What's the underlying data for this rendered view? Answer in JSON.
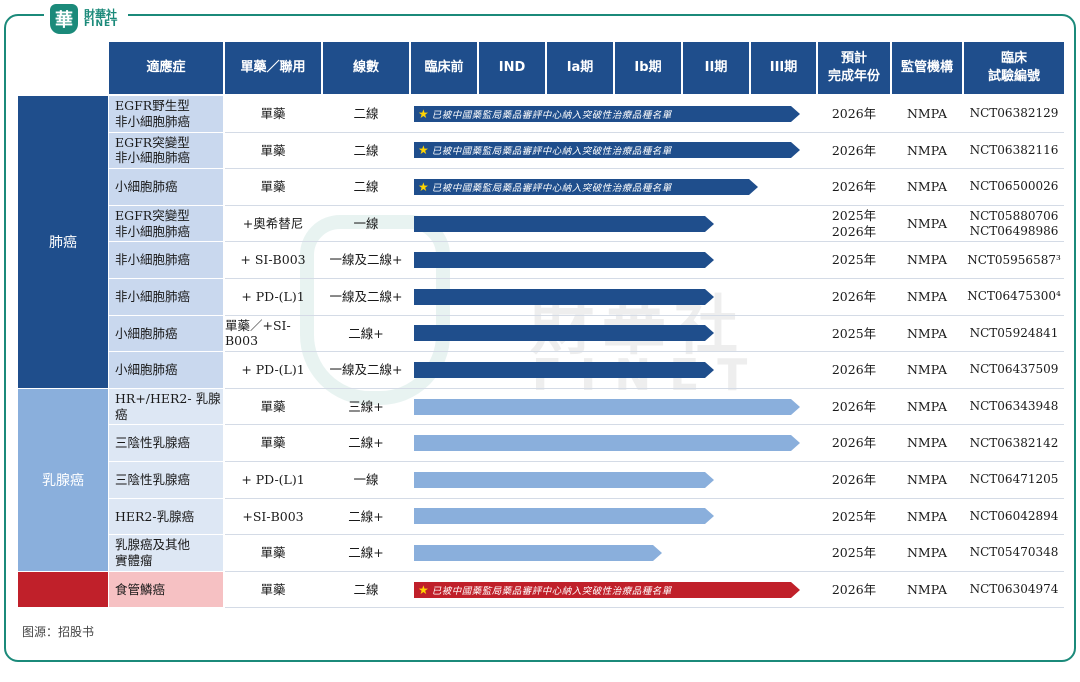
{
  "logo": {
    "badge": "華",
    "cn": "財華社",
    "en": "FINET"
  },
  "watermark": {
    "cn": "財華社",
    "en": "FINET"
  },
  "source": "图源：招股书",
  "headers": {
    "indication": "適應症",
    "mode": "單藥／聯用",
    "line": "線數",
    "preclinical": "臨床前",
    "ind": "IND",
    "ia": "Ia期",
    "ib": "Ib期",
    "ii": "II期",
    "iii": "III期",
    "year": "預計\n完成年份",
    "regulator": "監管機構",
    "trial": "臨床\n試驗編號"
  },
  "categories": [
    {
      "label": "肺癌",
      "color": "#1f4e8c"
    },
    {
      "label": "乳腺癌",
      "color": "#8aafdc"
    },
    {
      "label": "",
      "color": "#c0202a"
    }
  ],
  "breakthrough_note": "已被中國藥監局藥品審評中心納入突破性治療品種名單",
  "colors": {
    "dark_blue": "#1f4e8c",
    "light_blue": "#8aafdc",
    "red": "#c0202a",
    "teal": "#1b8a7a"
  },
  "rows": [
    {
      "indication": "EGFR野生型\n非小細胞肺癌",
      "mode": "單藥",
      "line": "二線",
      "years": [
        "2026年"
      ],
      "regulator": "NMPA",
      "trials": [
        "NCT06382129"
      ],
      "phase_end": "iii",
      "breakthrough": true,
      "group": 0
    },
    {
      "indication": "EGFR突變型\n非小細胞肺癌",
      "mode": "單藥",
      "line": "二線",
      "years": [
        "2026年"
      ],
      "regulator": "NMPA",
      "trials": [
        "NCT06382116"
      ],
      "phase_end": "iii",
      "breakthrough": true,
      "group": 0
    },
    {
      "indication": "小細胞肺癌",
      "mode": "單藥",
      "line": "二線",
      "years": [
        "2026年"
      ],
      "regulator": "NMPA",
      "trials": [
        "NCT06500026"
      ],
      "phase_end": "iii_start",
      "breakthrough": true,
      "group": 0
    },
    {
      "indication": "EGFR突變型\n非小細胞肺癌",
      "mode": "+奧希替尼",
      "line": "一線",
      "years": [
        "2025年",
        "2026年"
      ],
      "regulator": "NMPA",
      "trials": [
        "NCT05880706",
        "NCT06498986"
      ],
      "phase_end": "ii",
      "breakthrough": false,
      "group": 0
    },
    {
      "indication": "非小細胞肺癌",
      "mode": "+ SI-B003",
      "line": "一線及二線+",
      "years": [
        "2025年"
      ],
      "regulator": "NMPA",
      "trials": [
        "NCT05956587³"
      ],
      "phase_end": "ii",
      "breakthrough": false,
      "group": 0
    },
    {
      "indication": "非小細胞肺癌",
      "mode": "+ PD-(L)1",
      "line": "一線及二線+",
      "years": [
        "2026年"
      ],
      "regulator": "NMPA",
      "trials": [
        "NCT06475300⁴"
      ],
      "phase_end": "ii",
      "breakthrough": false,
      "group": 0
    },
    {
      "indication": "小細胞肺癌",
      "mode": "單藥／+SI-B003",
      "line": "二線+",
      "years": [
        "2025年"
      ],
      "regulator": "NMPA",
      "trials": [
        "NCT05924841"
      ],
      "phase_end": "ii",
      "breakthrough": false,
      "group": 0
    },
    {
      "indication": "小細胞肺癌",
      "mode": "+ PD-(L)1",
      "line": "一線及二線+",
      "years": [
        "2026年"
      ],
      "regulator": "NMPA",
      "trials": [
        "NCT06437509"
      ],
      "phase_end": "ii",
      "breakthrough": false,
      "group": 0
    },
    {
      "indication": "HR+/HER2- 乳腺癌",
      "mode": "單藥",
      "line": "三線+",
      "years": [
        "2026年"
      ],
      "regulator": "NMPA",
      "trials": [
        "NCT06343948"
      ],
      "phase_end": "iii",
      "breakthrough": false,
      "group": 1
    },
    {
      "indication": "三陰性乳腺癌",
      "mode": "單藥",
      "line": "二線+",
      "years": [
        "2026年"
      ],
      "regulator": "NMPA",
      "trials": [
        "NCT06382142"
      ],
      "phase_end": "iii",
      "breakthrough": false,
      "group": 1
    },
    {
      "indication": "三陰性乳腺癌",
      "mode": "+ PD-(L)1",
      "line": "一線",
      "years": [
        "2026年"
      ],
      "regulator": "NMPA",
      "trials": [
        "NCT06471205"
      ],
      "phase_end": "ii",
      "breakthrough": false,
      "group": 1
    },
    {
      "indication": "HER2-乳腺癌",
      "mode": "+SI-B003",
      "line": "二線+",
      "years": [
        "2025年"
      ],
      "regulator": "NMPA",
      "trials": [
        "NCT06042894"
      ],
      "phase_end": "ii",
      "breakthrough": false,
      "group": 1
    },
    {
      "indication": "乳腺癌及其他\n實體瘤",
      "mode": "單藥",
      "line": "二線+",
      "years": [
        "2025年"
      ],
      "regulator": "NMPA",
      "trials": [
        "NCT05470348"
      ],
      "phase_end": "ib",
      "breakthrough": false,
      "group": 1
    },
    {
      "indication": "食管鱗癌",
      "mode": "單藥",
      "line": "二線",
      "years": [
        "2026年"
      ],
      "regulator": "NMPA",
      "trials": [
        "NCT06304974"
      ],
      "phase_end": "iii",
      "breakthrough": true,
      "group": 2
    }
  ]
}
